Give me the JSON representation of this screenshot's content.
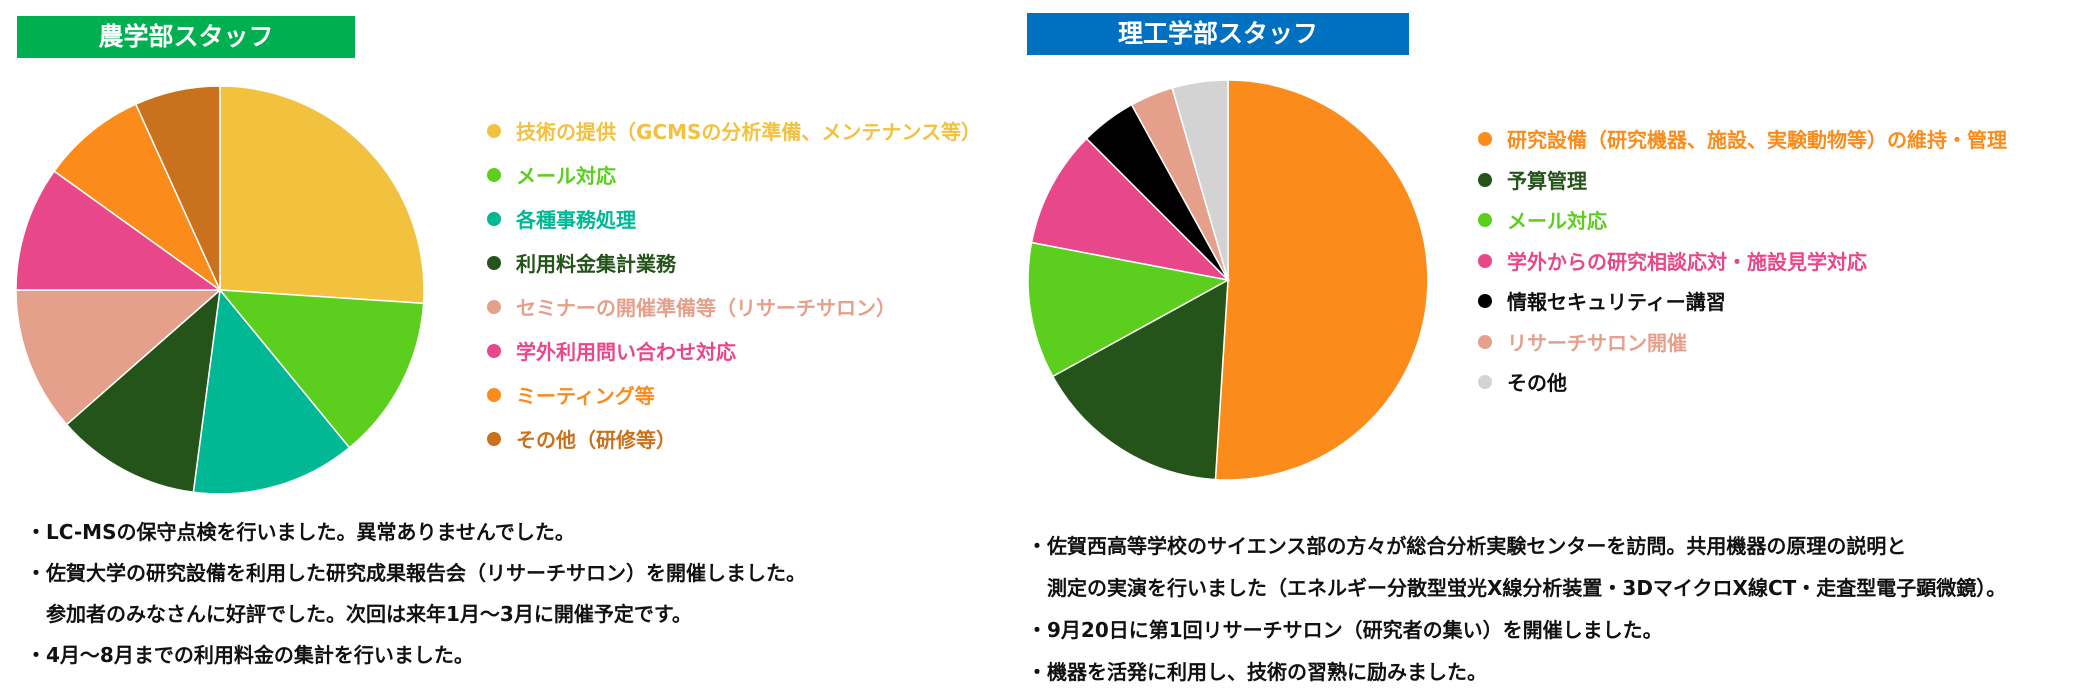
{
  "chart_data": [
    {
      "type": "pie",
      "title": "農学部スタッフ",
      "title_color": "#00b050",
      "slices": [
        {
          "label": "技術の提供（GCMSの分析準備、メンテナンス等）",
          "value": 25,
          "color": "#f2c23e"
        },
        {
          "label": "メール対応",
          "value": 12.5,
          "color": "#5ccf1e"
        },
        {
          "label": "各種事務処理",
          "value": 12.5,
          "color": "#00b894"
        },
        {
          "label": "利用料金集計業務",
          "value": 11,
          "color": "#24541a"
        },
        {
          "label": "セミナーの開催準備等（リサーチサロン）",
          "value": 11,
          "color": "#e5a08c"
        },
        {
          "label": "学外利用問い合わせ対応",
          "value": 9.5,
          "color": "#e8488a"
        },
        {
          "label": "ミーティング等",
          "value": 8,
          "color": "#fb8c1c"
        },
        {
          "label": "その他（研修等）",
          "value": 6.5,
          "color": "#c9711c"
        }
      ]
    },
    {
      "type": "pie",
      "title": "理工学部スタッフ",
      "title_color": "#0070c0",
      "slices": [
        {
          "label": "研究設備（研究機器、施設、実験動物等）の維持・管理",
          "value": 51,
          "color": "#fb8c1c"
        },
        {
          "label": "予算管理",
          "value": 16,
          "color": "#24541a"
        },
        {
          "label": "メール対応",
          "value": 11,
          "color": "#5ccf1e"
        },
        {
          "label": "学外からの研究相談応対・施設見学対応",
          "value": 9.5,
          "color": "#e8488a"
        },
        {
          "label": "情報セキュリティー講習",
          "value": 4.5,
          "color": "#000000"
        },
        {
          "label": "リサーチサロン開催",
          "value": 3.5,
          "color": "#e5a08c"
        },
        {
          "label": "その他",
          "value": 4.5,
          "color": "#d3d3d3"
        }
      ]
    }
  ],
  "notes": {
    "agri": [
      "・LC-MSの保守点検を行いました。異常ありませんでした。",
      "・佐賀大学の研究設備を利用した研究成果報告会（リサーチサロン）を開催しました。",
      "　参加者のみなさんに好評でした。次回は来年1月～3月に開催予定です。",
      "・4月～8月までの利用料金の集計を行いました。"
    ],
    "sci": [
      "・佐賀西高等学校のサイエンス部の方々が総合分析実験センターを訪問。共用機器の原理の説明と",
      "　測定の実演を行いました（エネルギー分散型蛍光X線分析装置・3DマイクロX線CT・走査型電子顕微鏡）。",
      "・9月20日に第1回リサーチサロン（研究者の集い）を開催しました。",
      "・機器を活発に利用し、技術の習熟に励みました。"
    ]
  }
}
